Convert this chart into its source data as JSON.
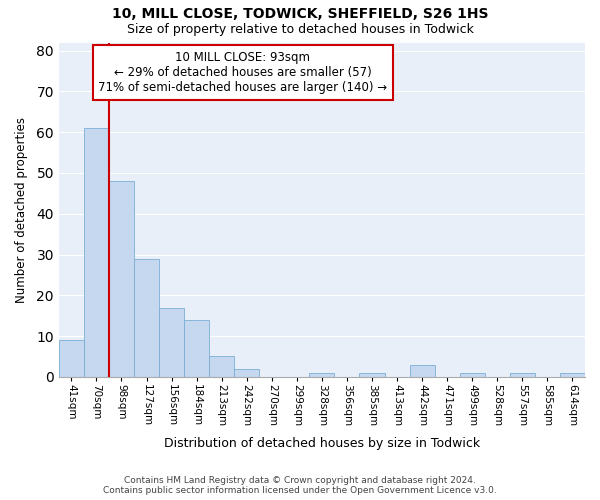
{
  "title": "10, MILL CLOSE, TODWICK, SHEFFIELD, S26 1HS",
  "subtitle": "Size of property relative to detached houses in Todwick",
  "xlabel": "Distribution of detached houses by size in Todwick",
  "ylabel": "Number of detached properties",
  "bar_color": "#c5d8f0",
  "bar_edgecolor": "#7aafd4",
  "background_color": "#e8eff8",
  "bin_labels": [
    "41sqm",
    "70sqm",
    "98sqm",
    "127sqm",
    "156sqm",
    "184sqm",
    "213sqm",
    "242sqm",
    "270sqm",
    "299sqm",
    "328sqm",
    "356sqm",
    "385sqm",
    "413sqm",
    "442sqm",
    "471sqm",
    "499sqm",
    "528sqm",
    "557sqm",
    "585sqm",
    "614sqm"
  ],
  "bar_heights": [
    9,
    61,
    48,
    29,
    17,
    14,
    5,
    2,
    0,
    0,
    1,
    0,
    1,
    0,
    3,
    0,
    1,
    0,
    1,
    0,
    1
  ],
  "ylim": [
    0,
    82
  ],
  "yticks": [
    0,
    10,
    20,
    30,
    40,
    50,
    60,
    70,
    80
  ],
  "annotation_text": "10 MILL CLOSE: 93sqm\n← 29% of detached houses are smaller (57)\n71% of semi-detached houses are larger (140) →",
  "vline_color": "#cc0000",
  "annotation_box_color": "#cc0000",
  "footer_line1": "Contains HM Land Registry data © Crown copyright and database right 2024.",
  "footer_line2": "Contains public sector information licensed under the Open Government Licence v3.0."
}
